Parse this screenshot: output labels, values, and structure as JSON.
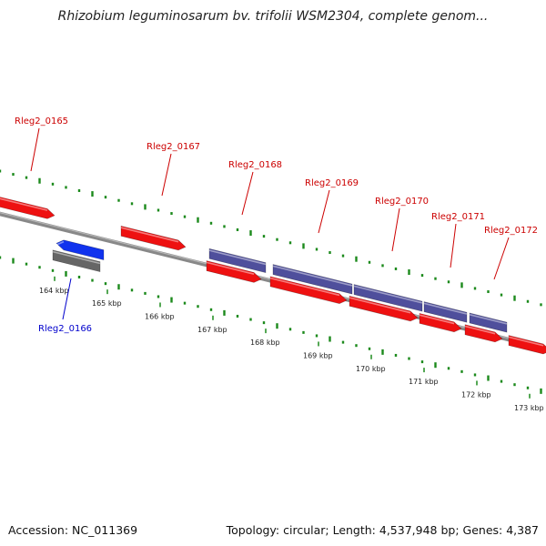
{
  "title": "Rhizobium leguminosarum bv. trifolii WSM2304, complete genom...",
  "footer": {
    "accession": "Accession: NC_011369",
    "summary": "Topology: circular; Length: 4,537,948 bp; Genes: 4,387"
  },
  "colors": {
    "forward_gene": "#ee1111",
    "reverse_gene": "#1133ee",
    "cds_feature": "#4f4f9c",
    "pseudo_feature": "#666666",
    "backbone": "#888888",
    "gc_ticks": "#1c8a1c",
    "label_forward": "#cc0000",
    "label_reverse": "#0000cc"
  },
  "scale": {
    "unit": "kbp",
    "ticks": [
      {
        "kbp": 164,
        "label": "164 kbp"
      },
      {
        "kbp": 165,
        "label": "165 kbp"
      },
      {
        "kbp": 166,
        "label": "166 kbp"
      },
      {
        "kbp": 167,
        "label": "167 kbp"
      },
      {
        "kbp": 168,
        "label": "168 kbp"
      },
      {
        "kbp": 169,
        "label": "169 kbp"
      },
      {
        "kbp": 170,
        "label": "170 kbp"
      },
      {
        "kbp": 171,
        "label": "171 kbp"
      },
      {
        "kbp": 172,
        "label": "172 kbp"
      },
      {
        "kbp": 173,
        "label": "173 kbp"
      }
    ]
  },
  "genes": [
    {
      "label": "Rleg2_0165",
      "strand": "+"
    },
    {
      "label": "Rleg2_0166",
      "strand": "-"
    },
    {
      "label": "Rleg2_0167",
      "strand": "+"
    },
    {
      "label": "Rleg2_0168",
      "strand": "+"
    },
    {
      "label": "Rleg2_0169",
      "strand": "+"
    },
    {
      "label": "Rleg2_0170",
      "strand": "+"
    },
    {
      "label": "Rleg2_0171",
      "strand": "+"
    },
    {
      "label": "Rleg2_0172",
      "strand": "+"
    }
  ]
}
